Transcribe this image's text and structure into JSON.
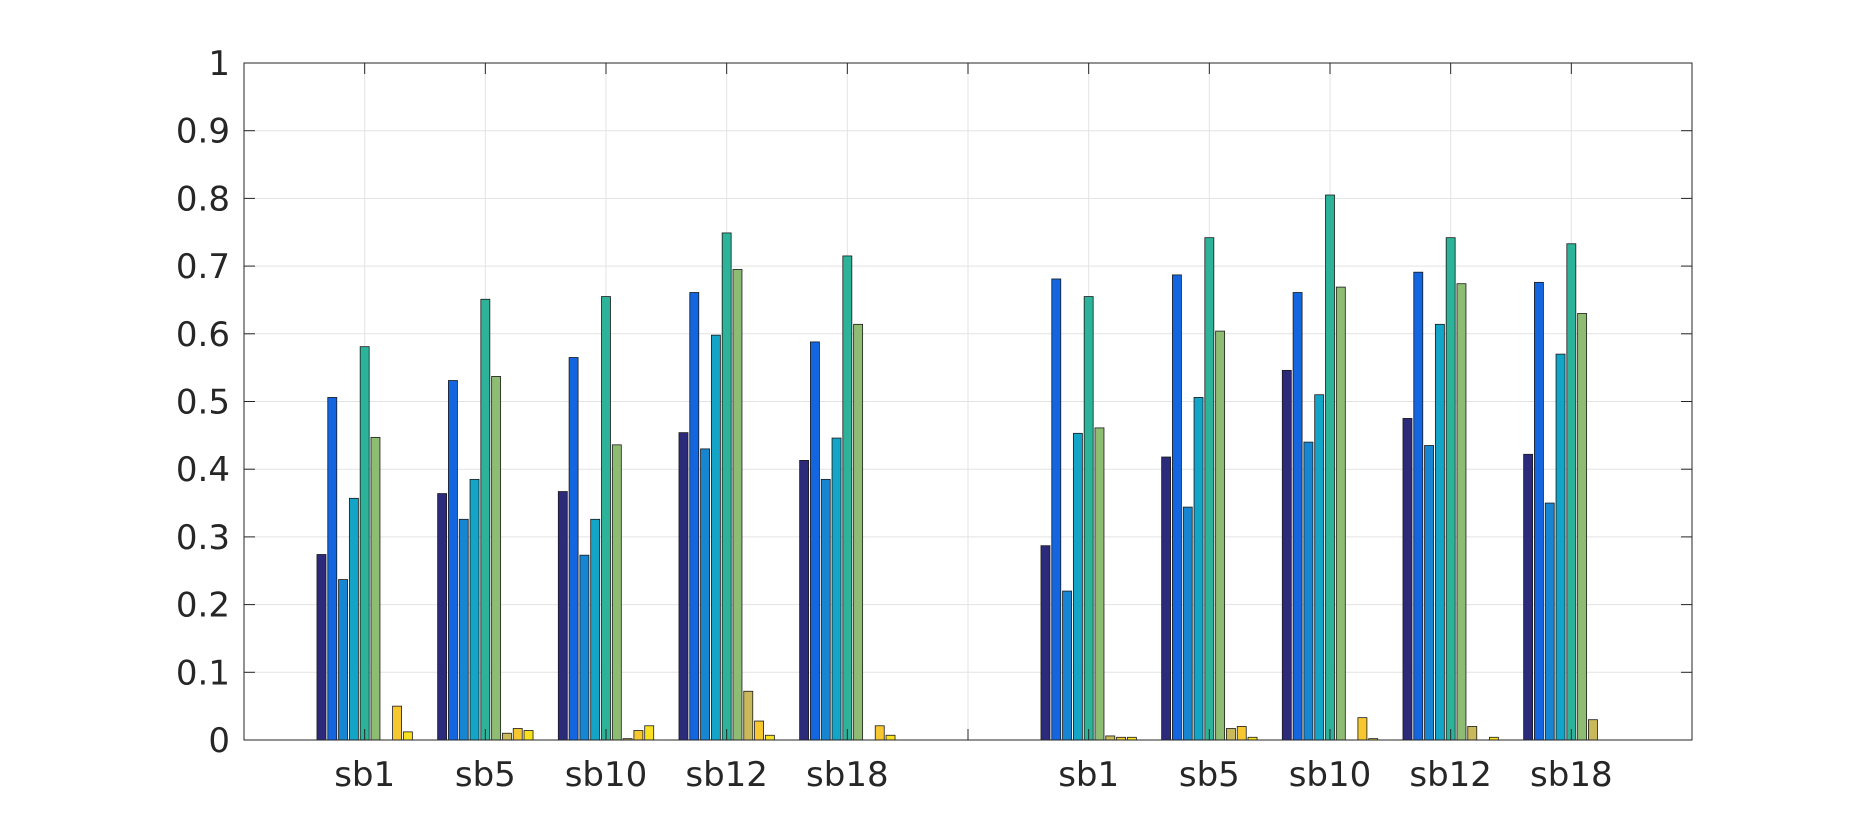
{
  "chart_data": {
    "type": "bar",
    "title": "",
    "xlabel": "",
    "ylabel": "",
    "ylim": [
      0,
      1
    ],
    "yticks": [
      0,
      0.1,
      0.2,
      0.3,
      0.4,
      0.5,
      0.6,
      0.7,
      0.8,
      0.9,
      1
    ],
    "ytick_labels": [
      "0",
      "0.1",
      "0.2",
      "0.3",
      "0.4",
      "0.5",
      "0.6",
      "0.7",
      "0.8",
      "0.9",
      "1"
    ],
    "grid": true,
    "legend": "none",
    "categories": [
      "sb1",
      "sb5",
      "sb10",
      "sb12",
      "sb18",
      "",
      "sb1",
      "sb5",
      "sb10",
      "sb12",
      "sb18"
    ],
    "series_colors": [
      "#2b2a7b",
      "#1366e0",
      "#1786d2",
      "#12a5c8",
      "#2db399",
      "#8dbc72",
      "#c9b95a",
      "#f7c730",
      "#f9e11f"
    ],
    "groups": [
      [
        0.274,
        0.506,
        0.237,
        0.357,
        0.581,
        0.447,
        0.0,
        0.05,
        0.012
      ],
      [
        0.364,
        0.531,
        0.326,
        0.385,
        0.651,
        0.537,
        0.01,
        0.017,
        0.014
      ],
      [
        0.367,
        0.565,
        0.273,
        0.326,
        0.655,
        0.436,
        0.002,
        0.014,
        0.021
      ],
      [
        0.454,
        0.661,
        0.43,
        0.598,
        0.749,
        0.695,
        0.072,
        0.028,
        0.007
      ],
      [
        0.413,
        0.588,
        0.385,
        0.446,
        0.715,
        0.614,
        0.0,
        0.021,
        0.007
      ],
      [
        0,
        0,
        0,
        0,
        0,
        0,
        0,
        0,
        0
      ],
      [
        0.287,
        0.681,
        0.22,
        0.453,
        0.655,
        0.461,
        0.006,
        0.004,
        0.004
      ],
      [
        0.418,
        0.687,
        0.344,
        0.506,
        0.742,
        0.604,
        0.017,
        0.02,
        0.004
      ],
      [
        0.546,
        0.661,
        0.44,
        0.51,
        0.805,
        0.669,
        0.0,
        0.033,
        0.002
      ],
      [
        0.475,
        0.691,
        0.435,
        0.614,
        0.742,
        0.674,
        0.02,
        0.0,
        0.004
      ],
      [
        0.422,
        0.676,
        0.35,
        0.57,
        0.733,
        0.63,
        0.03,
        0.0,
        0.0
      ]
    ]
  }
}
